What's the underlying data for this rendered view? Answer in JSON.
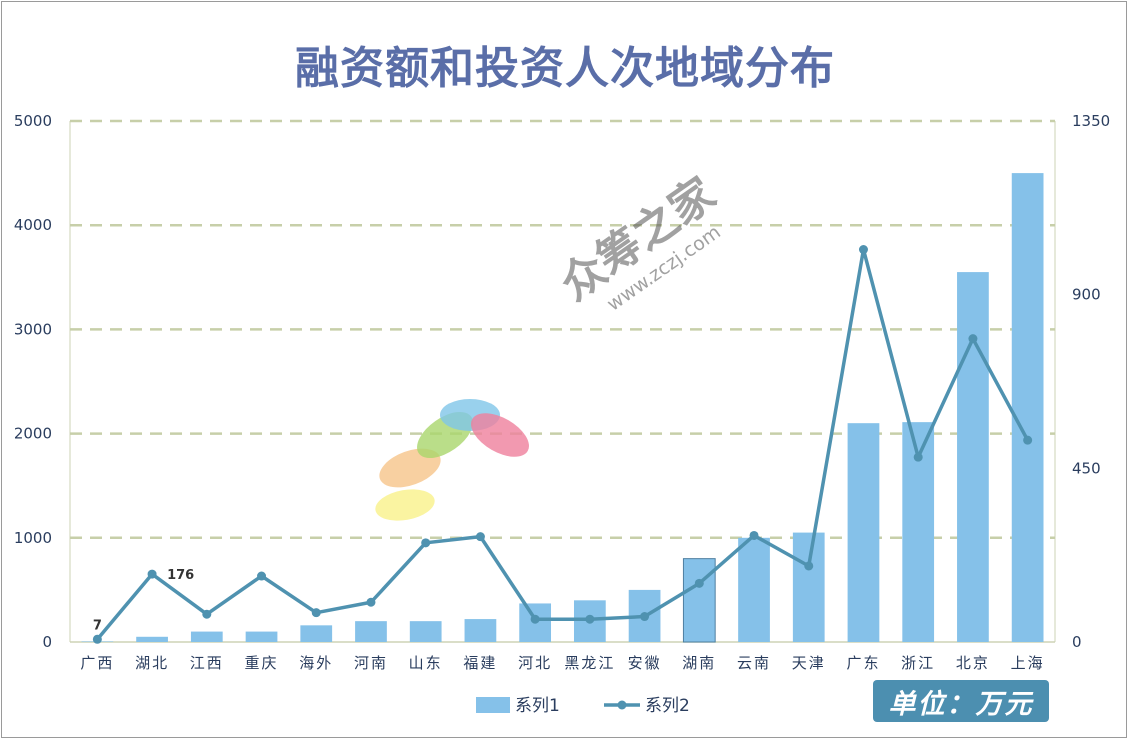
{
  "chart_data": {
    "type": "bar",
    "title": "融资额和投资人次地域分布",
    "categories": [
      "广西",
      "湖北",
      "江西",
      "重庆",
      "海外",
      "河南",
      "山东",
      "福建",
      "河北",
      "黑龙江",
      "安徽",
      "湖南",
      "云南",
      "天津",
      "广东",
      "浙江",
      "北京",
      "上海"
    ],
    "series": [
      {
        "name": "系列1",
        "type": "bar",
        "axis": "left",
        "values": [
          5,
          50,
          100,
          100,
          160,
          200,
          200,
          220,
          370,
          400,
          500,
          800,
          1000,
          1050,
          2100,
          2110,
          3550,
          4500
        ]
      },
      {
        "name": "系列2",
        "type": "line",
        "axis": "right",
        "values": [
          7,
          176,
          72,
          171,
          76,
          103,
          257,
          273,
          59,
          59,
          66,
          152,
          276,
          197,
          1017,
          479,
          786,
          523
        ]
      }
    ],
    "data_labels": [
      {
        "series": "系列2",
        "category": "广西",
        "text": "7"
      },
      {
        "series": "系列2",
        "category": "湖北",
        "text": "176"
      }
    ],
    "y_left": {
      "min": 0,
      "max": 5000,
      "ticks": [
        "0",
        "1000",
        "2000",
        "3000",
        "4000",
        "5000"
      ]
    },
    "y_right": {
      "min": 0,
      "max": 1350,
      "ticks": [
        "0",
        "450",
        "900",
        "1350"
      ]
    },
    "grid": true,
    "legend": {
      "position": "bottom"
    },
    "colors": {
      "bar": "#85c1e9",
      "bar_highlight_border": "#4e7fa0",
      "line": "#4f92b0",
      "grid": "#c7cfa9",
      "axis_text": "#2a3d5e",
      "title": "#5a6ea8",
      "badge": "#4c8fb0"
    }
  },
  "unit_badge": "单位：万元",
  "watermark": {
    "text": "众筹之家",
    "url": "www.zczj.com"
  }
}
